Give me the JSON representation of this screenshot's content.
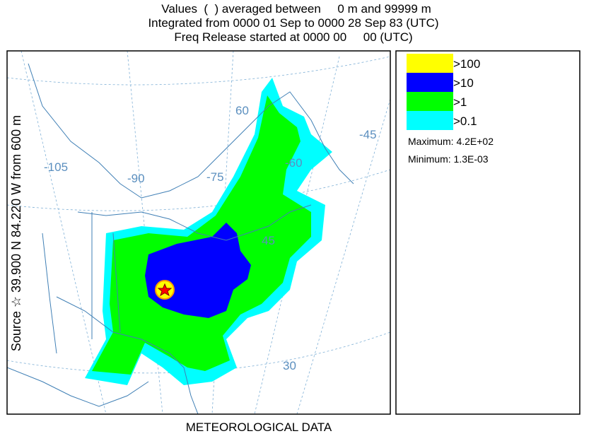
{
  "header": {
    "lines": [
      "Values  (  ) averaged between     0 m and 99999 m",
      "Integrated from 0000 01 Sep to 0000 28 Sep 83 (UTC)",
      "Freq Release started at 0000 00     00 (UTC)"
    ]
  },
  "map": {
    "grid_labels": [
      "-105",
      "-90",
      "-75",
      "-60",
      "-45",
      "60",
      "45",
      "30"
    ],
    "source_label": "Source ☆ 39.900 N 84.220 W from 600 m",
    "footer": "METEOROLOGICAL DATA"
  },
  "legend": {
    "items": [
      {
        "label": ">100",
        "color": "#ffff00"
      },
      {
        "label": ">10",
        "color": "#0000ff"
      },
      {
        "label": ">1",
        "color": "#00ff00"
      },
      {
        "label": ">0.1",
        "color": "#00ffff"
      }
    ],
    "maximum": "Maximum: 4.2E+02",
    "minimum": "Minimum: 1.3E-03"
  }
}
